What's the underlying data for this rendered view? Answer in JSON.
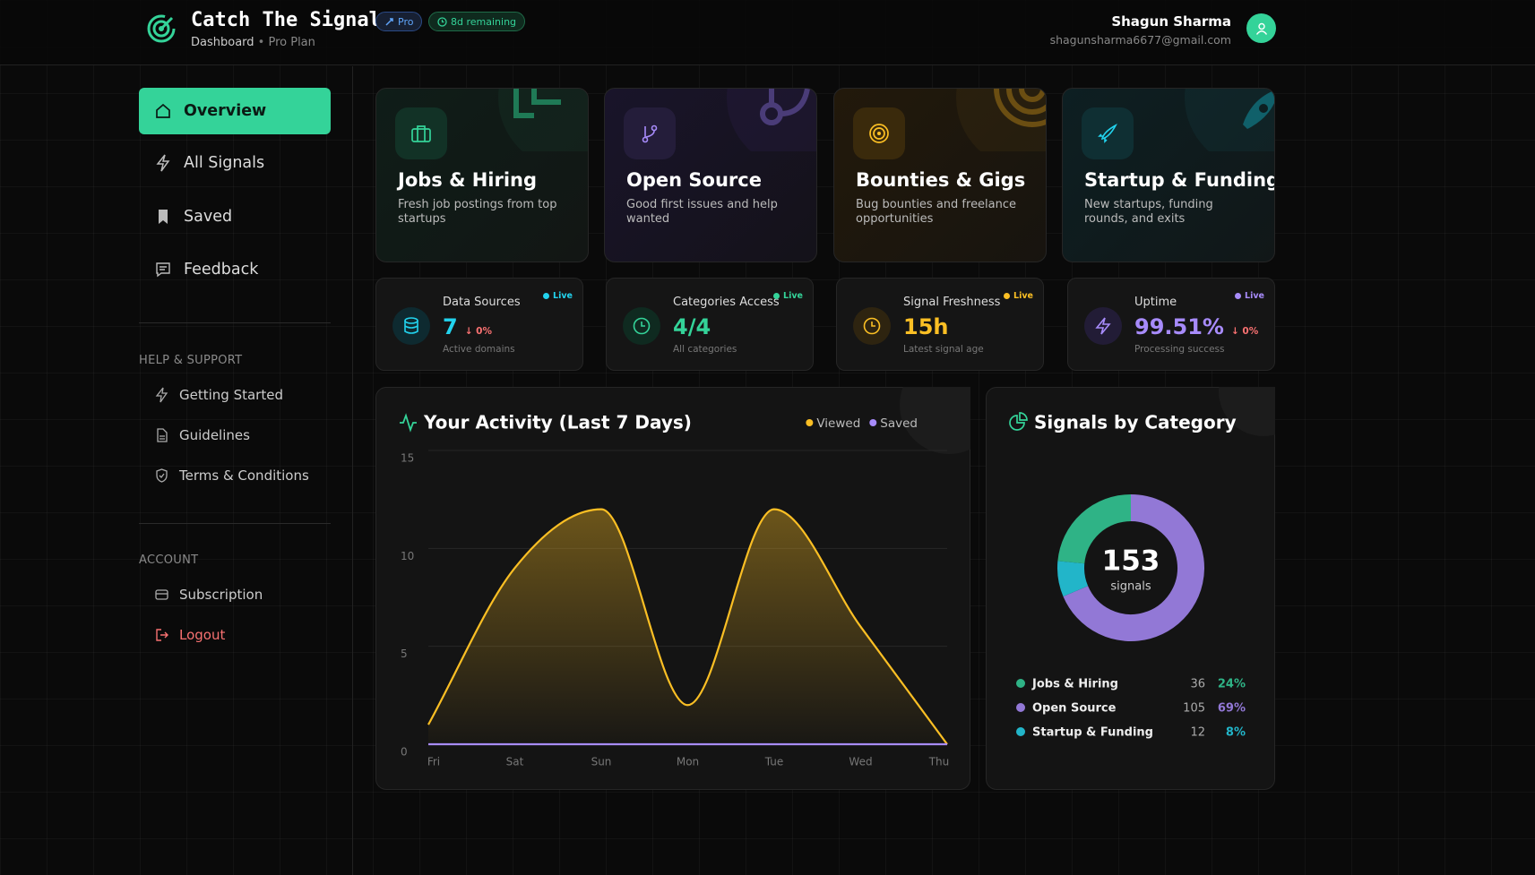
{
  "header": {
    "title": "Catch The Signal",
    "plan_badge": "Pro",
    "trial_badge": "8d remaining",
    "breadcrumb": "Dashboard",
    "breadcrumb_plan": "Pro Plan",
    "user_name": "Shagun Sharma",
    "user_email": "shagunsharma6677@gmail.com"
  },
  "sidebar": {
    "nav": [
      "Overview",
      "All Signals",
      "Saved",
      "Feedback"
    ],
    "help_heading": "HELP & SUPPORT",
    "help": [
      "Getting Started",
      "Guidelines",
      "Terms & Conditions"
    ],
    "account_heading": "ACCOUNT",
    "account": [
      "Subscription",
      "Logout"
    ]
  },
  "category_cards": [
    {
      "title": "Jobs & Hiring",
      "description": "Fresh job postings from top startups"
    },
    {
      "title": "Open Source",
      "description": "Good first issues and help wanted"
    },
    {
      "title": "Bounties & Gigs",
      "description": "Bug bounties and freelance opportunities"
    },
    {
      "title": "Startup & Funding",
      "description": "New startups, funding rounds, and exits"
    }
  ],
  "stat_cards": [
    {
      "label": "Data Sources",
      "value": 7,
      "change": "↓ 0%",
      "caption": "Active domains",
      "status": "Live"
    },
    {
      "label": "Categories Access",
      "value": "4/4",
      "caption": "All categories",
      "status": "Live"
    },
    {
      "label": "Signal Freshness",
      "value": "15h",
      "caption": "Latest signal age",
      "status": "Live"
    },
    {
      "label": "Uptime",
      "value": "99.51%",
      "change": "↓ 0%",
      "caption": "Processing success",
      "status": "Live"
    }
  ],
  "chart_data": [
    {
      "type": "line",
      "title": "Your Activity (Last 7 Days)",
      "categories": [
        "Fri",
        "Sat",
        "Sun",
        "Mon",
        "Tue",
        "Wed",
        "Thu"
      ],
      "series": [
        {
          "name": "Viewed",
          "color": "#fbbf24",
          "values": [
            1,
            9,
            12,
            2,
            12,
            6,
            0
          ]
        },
        {
          "name": "Saved",
          "color": "#a78bfa",
          "values": [
            0,
            0,
            0,
            0,
            0,
            0,
            0
          ]
        }
      ],
      "ylim": [
        0,
        15
      ],
      "yticks": [
        0,
        5,
        10,
        15
      ],
      "grid": true
    },
    {
      "type": "pie",
      "title": "Signals by Category",
      "total": 153,
      "total_label": "signals",
      "categories": [
        "Jobs & Hiring",
        "Open Source",
        "Startup & Funding"
      ],
      "values": [
        36,
        105,
        12
      ],
      "colors": [
        "#2fb386",
        "#9278d6",
        "#22b5c9"
      ],
      "shares": [
        24,
        69,
        8
      ],
      "share_labels": [
        "24%",
        "69%",
        "8%"
      ]
    }
  ]
}
